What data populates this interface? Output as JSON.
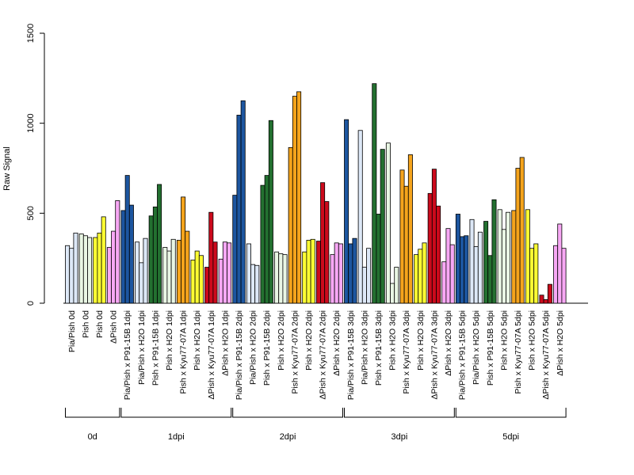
{
  "chart_data": {
    "type": "bar",
    "title": "",
    "xlabel": "",
    "ylabel": "Raw Signal",
    "ylim": [
      0,
      1500
    ],
    "yticks": [
      0,
      500,
      1000,
      1500
    ],
    "legend": "none",
    "categories": [
      "Pia/Pish 0d",
      "Pish 0d",
      "Pish 0d",
      "ΔPish 0d",
      "Pia/Pish x P91-15B 1dpi",
      "Pia/Pish x H2O 1dpi",
      "Pish x P91-15B 1dpi",
      "Pish x H2O 1dpi",
      "Pish x Kyu77-07A 1dpi",
      "Pish x H2O 1dpi",
      "ΔPish x Kyu77-07A 1dpi",
      "ΔPish x H2O 1dpi",
      "Pia/Pish x P91-15B 2dpi",
      "Pia/Pish x H2O 2dpi",
      "Pish x P91-15B 2dpi",
      "Pish x H2O 2dpi",
      "Pish x Kyu77-07A 2dpi",
      "Pish x H2O 2dpi",
      "ΔPish x Kyu77-07A 2dpi",
      "ΔPish x H2O 2dpi",
      "Pia/Pish x P91-15B 3dpi",
      "Pia/Pish x H2O 3dpi",
      "Pish x P91-15B 3dpi",
      "Pish x H2O 3dpi",
      "Pish x Kyu77-07A 3dpi",
      "Pish x H2O 3dpi",
      "ΔPish x Kyu77-07A 3dpi",
      "ΔPish x H2O 3dpi",
      "Pia/Pish x P91-15B 5dpi",
      "Pia/Pish x H2O 5dpi",
      "Pish x P91-15B 5dpi",
      "Pish x H2O 5dpi",
      "Pish x Kyu77-07A 5dpi",
      "Pish x H2O 5dpi",
      "ΔPish x Kyu77-07A 5dpi",
      "ΔPish x H2O 5dpi"
    ],
    "colors": [
      "#dde8f7",
      "#e9f6e4",
      "#ffff33",
      "#f8a8f5",
      "#1d56a0",
      "#dde8f7",
      "#237030",
      "#e9f6e4",
      "#f5a41c",
      "#ffff33",
      "#cc0a1c",
      "#f8a8f5",
      "#1d56a0",
      "#dde8f7",
      "#237030",
      "#e9f6e4",
      "#f5a41c",
      "#ffff33",
      "#cc0a1c",
      "#f8a8f5",
      "#1d56a0",
      "#dde8f7",
      "#237030",
      "#e9f6e4",
      "#f5a41c",
      "#ffff33",
      "#cc0a1c",
      "#f8a8f5",
      "#1d56a0",
      "#dde8f7",
      "#237030",
      "#e9f6e4",
      "#f5a41c",
      "#ffff33",
      "#cc0a1c",
      "#f8a8f5"
    ],
    "values": [
      [
        320,
        305,
        390
      ],
      [
        385,
        375,
        365
      ],
      [
        365,
        390,
        480
      ],
      [
        310,
        400,
        570
      ],
      [
        515,
        710,
        545
      ],
      [
        340,
        225,
        360
      ],
      [
        485,
        535,
        660
      ],
      [
        310,
        290,
        355
      ],
      [
        350,
        590,
        400
      ],
      [
        240,
        290,
        265
      ],
      [
        200,
        505,
        340
      ],
      [
        245,
        340,
        335
      ],
      [
        600,
        1045,
        1125
      ],
      [
        330,
        215,
        210
      ],
      [
        655,
        710,
        1015
      ],
      [
        285,
        275,
        270
      ],
      [
        865,
        1150,
        1175
      ],
      [
        285,
        350,
        355
      ],
      [
        345,
        670,
        565
      ],
      [
        270,
        335,
        330
      ],
      [
        1020,
        330,
        360
      ],
      [
        960,
        200,
        305
      ],
      [
        1220,
        495,
        855
      ],
      [
        890,
        110,
        200
      ],
      [
        740,
        650,
        825
      ],
      [
        270,
        300,
        335
      ],
      [
        610,
        745,
        540
      ],
      [
        230,
        415,
        325
      ],
      [
        495,
        370,
        375
      ],
      [
        465,
        315,
        395
      ],
      [
        455,
        265,
        575
      ],
      [
        520,
        410,
        505
      ],
      [
        515,
        750,
        810
      ],
      [
        520,
        305,
        330
      ],
      [
        45,
        20,
        105
      ],
      [
        320,
        440,
        305
      ]
    ],
    "groups": [
      {
        "label": "0d",
        "count": 4
      },
      {
        "label": "1dpi",
        "count": 8
      },
      {
        "label": "2dpi",
        "count": 8
      },
      {
        "label": "3dpi",
        "count": 8
      },
      {
        "label": "5dpi",
        "count": 8
      }
    ]
  }
}
